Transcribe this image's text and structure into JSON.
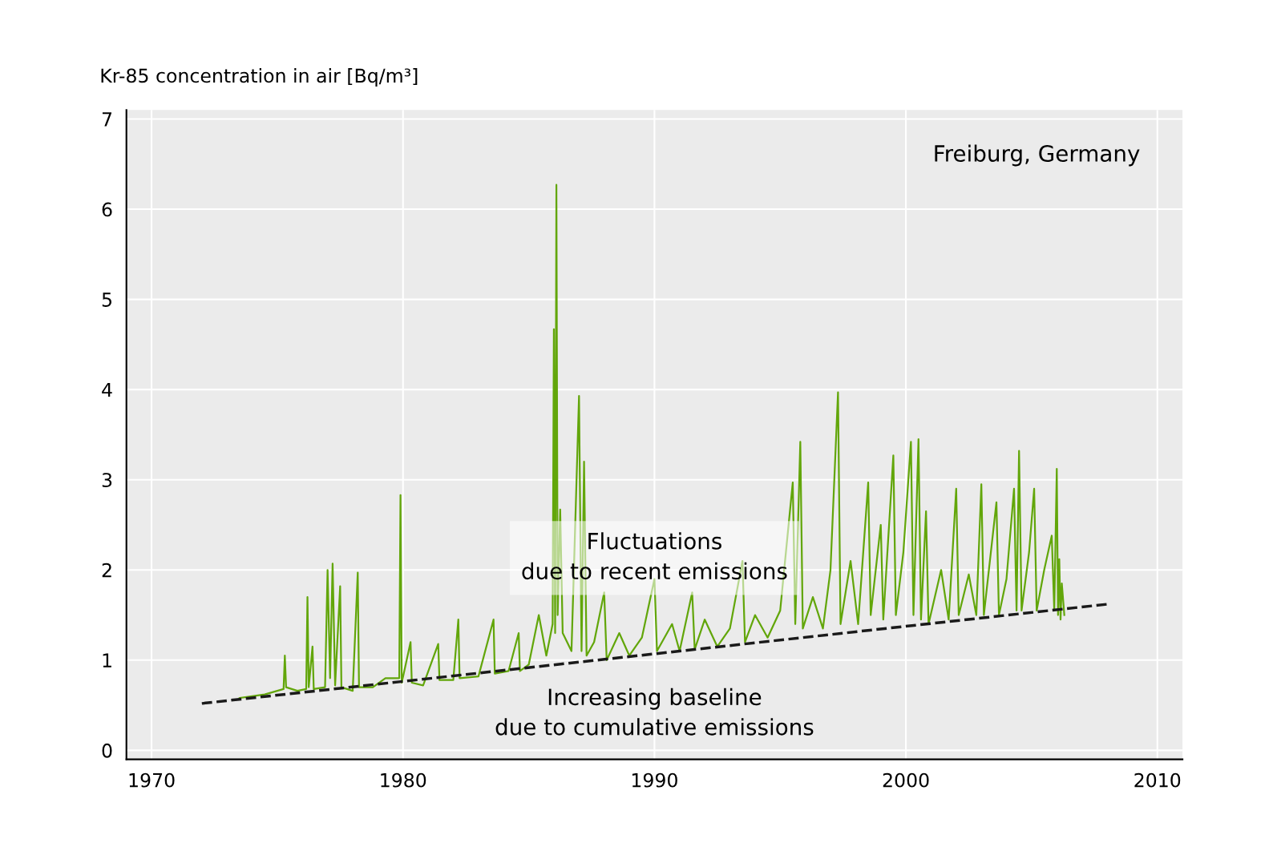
{
  "chart_data": {
    "type": "line",
    "ylabel": "Kr-85 concentration in air [Bq/m³]",
    "annotations": [
      "Freiburg, Germany",
      "Fluctuations\ndue to recent emissions",
      "Increasing baseline\ndue to cumulative emissions"
    ],
    "xlim": [
      1969,
      2011
    ],
    "xticks": [
      1970,
      1980,
      1990,
      2000,
      2010
    ],
    "ylim": [
      -0.1,
      7.1
    ],
    "yticks": [
      0,
      1,
      2,
      3,
      4,
      5,
      6,
      7
    ],
    "grid": true,
    "marker": "none",
    "series": [
      {
        "color": "#62a60a",
        "line_style": "solid",
        "x": [
          1973.5,
          1974.0,
          1974.5,
          1975.0,
          1975.25,
          1975.3,
          1975.35,
          1975.8,
          1976.15,
          1976.2,
          1976.25,
          1976.4,
          1976.45,
          1976.9,
          1977.0,
          1977.1,
          1977.2,
          1977.3,
          1977.5,
          1977.55,
          1978.0,
          1978.2,
          1978.25,
          1978.8,
          1979.3,
          1979.85,
          1979.9,
          1979.95,
          1980.3,
          1980.35,
          1980.8,
          1981.4,
          1981.45,
          1982.0,
          1982.2,
          1982.25,
          1983.0,
          1983.6,
          1983.65,
          1984.2,
          1984.6,
          1984.65,
          1985.0,
          1985.4,
          1985.7,
          1985.95,
          1986.0,
          1986.05,
          1986.1,
          1986.15,
          1986.25,
          1986.35,
          1986.7,
          1987.0,
          1987.1,
          1987.2,
          1987.3,
          1987.6,
          1988.0,
          1988.1,
          1988.6,
          1989.0,
          1989.5,
          1990.0,
          1990.1,
          1990.7,
          1991.0,
          1991.5,
          1991.6,
          1992.0,
          1992.5,
          1993.0,
          1993.5,
          1993.6,
          1994.0,
          1994.5,
          1995.0,
          1995.5,
          1995.6,
          1995.8,
          1995.9,
          1996.3,
          1996.7,
          1997.0,
          1997.3,
          1997.4,
          1997.8,
          1998.1,
          1998.5,
          1998.6,
          1999.0,
          1999.1,
          1999.5,
          1999.6,
          1999.9,
          2000.2,
          2000.3,
          2000.5,
          2000.6,
          2000.8,
          2000.9,
          2001.4,
          2001.7,
          2002.0,
          2002.1,
          2002.5,
          2002.8,
          2003.0,
          2003.1,
          2003.6,
          2003.7,
          2004.0,
          2004.3,
          2004.4,
          2004.5,
          2004.6,
          2004.9,
          2005.1,
          2005.2,
          2005.5,
          2005.8,
          2005.9,
          2006.0,
          2006.05,
          2006.1,
          2006.15,
          2006.2,
          2006.3
        ],
        "values": [
          0.58,
          0.6,
          0.62,
          0.66,
          0.68,
          1.05,
          0.7,
          0.66,
          0.68,
          1.7,
          0.7,
          1.15,
          0.68,
          0.7,
          2.0,
          0.8,
          2.07,
          0.72,
          1.82,
          0.7,
          0.66,
          1.97,
          0.7,
          0.7,
          0.8,
          0.8,
          2.83,
          0.75,
          1.2,
          0.75,
          0.72,
          1.18,
          0.78,
          0.78,
          1.45,
          0.8,
          0.82,
          1.45,
          0.85,
          0.88,
          1.3,
          0.88,
          0.95,
          1.5,
          1.05,
          1.4,
          4.67,
          1.3,
          6.27,
          1.5,
          2.67,
          1.3,
          1.1,
          3.93,
          1.1,
          3.2,
          1.05,
          1.2,
          1.75,
          1.0,
          1.3,
          1.05,
          1.25,
          1.9,
          1.1,
          1.4,
          1.1,
          1.75,
          1.12,
          1.45,
          1.15,
          1.35,
          2.1,
          1.2,
          1.5,
          1.25,
          1.55,
          2.97,
          1.4,
          3.42,
          1.35,
          1.7,
          1.35,
          2.0,
          3.97,
          1.4,
          2.1,
          1.4,
          2.97,
          1.5,
          2.5,
          1.45,
          3.27,
          1.5,
          2.2,
          3.42,
          1.5,
          3.45,
          1.45,
          2.65,
          1.4,
          2.0,
          1.45,
          2.9,
          1.5,
          1.95,
          1.5,
          2.95,
          1.5,
          2.75,
          1.5,
          1.9,
          2.9,
          1.55,
          3.32,
          1.55,
          2.2,
          2.9,
          1.55,
          2.0,
          2.38,
          1.55,
          3.12,
          1.5,
          2.12,
          1.45,
          1.85,
          1.5
        ]
      },
      {
        "color": "#1a1a1a",
        "line_style": "dashed",
        "x": [
          1972,
          2008
        ],
        "values": [
          0.52,
          1.62
        ]
      }
    ]
  }
}
